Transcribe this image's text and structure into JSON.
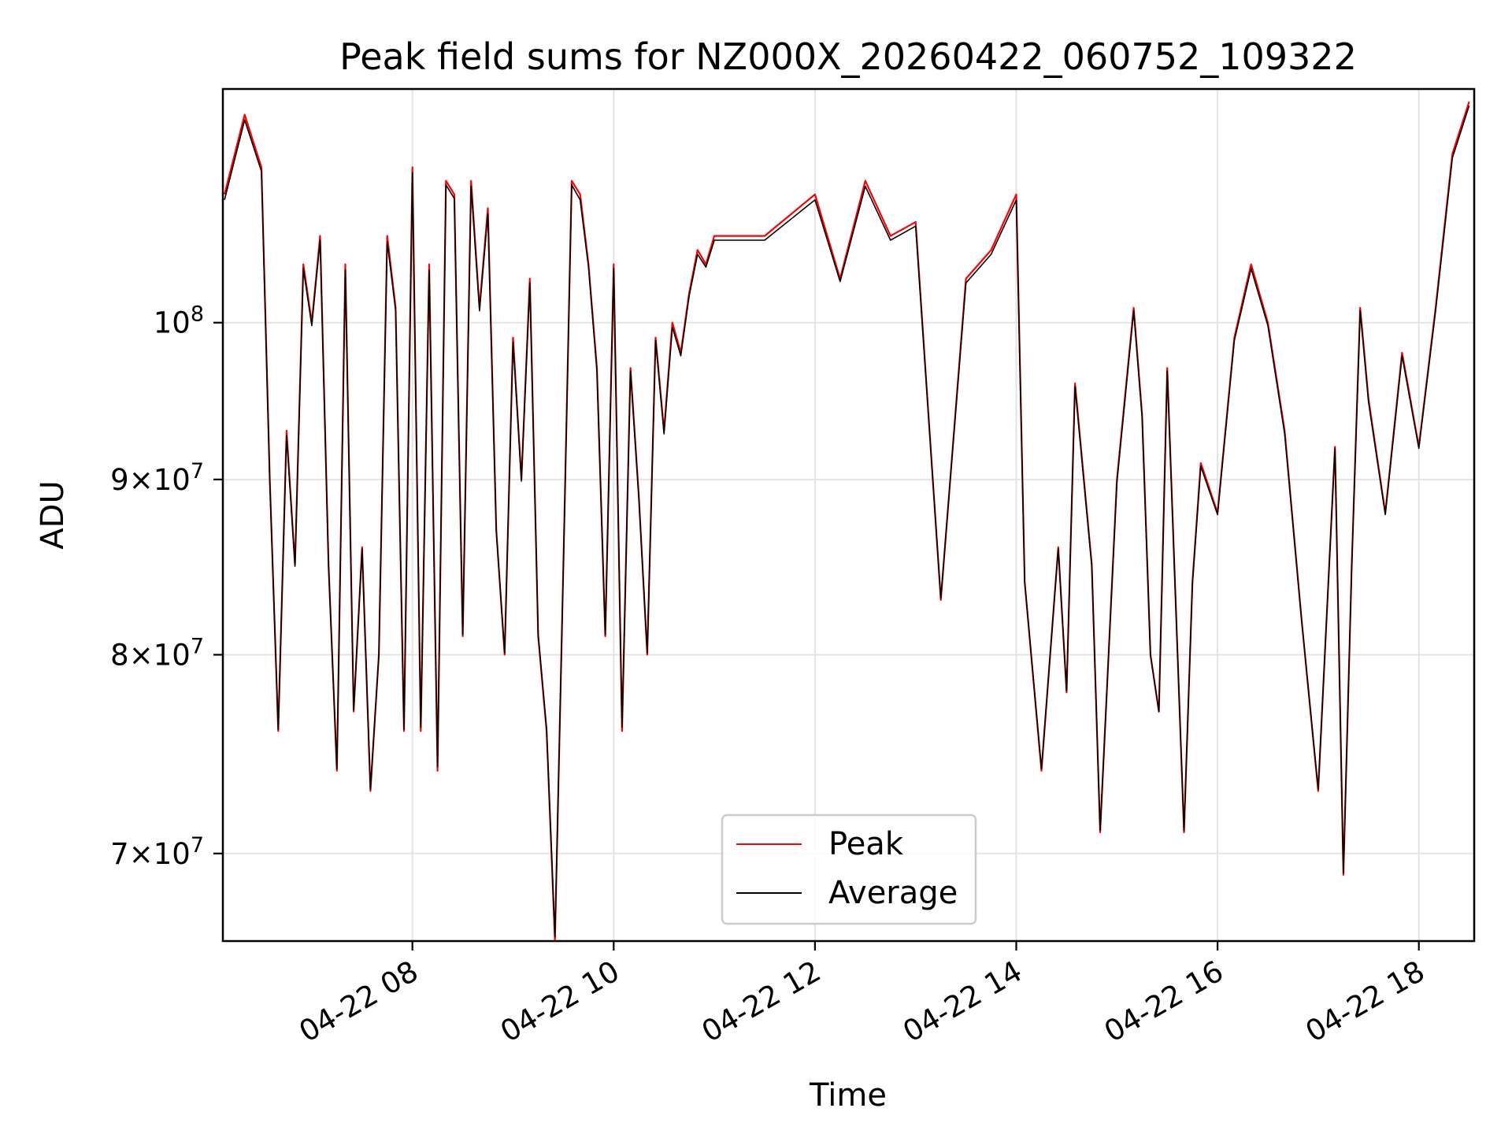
{
  "chart_data": {
    "type": "line",
    "title": "Peak field sums for NZ000X_20260422_060752_109322",
    "xlabel": "Time",
    "ylabel": "ADU",
    "y_scale": "log",
    "grid": true,
    "legend_placement": "lower-center",
    "xlim": [
      "2026-04-22 06:07",
      "2026-04-22 18:33"
    ],
    "ylim": [
      66000000,
      117000000
    ],
    "x_ticks": [
      {
        "value": "2026-04-22 08:00",
        "label": "04-22 08"
      },
      {
        "value": "2026-04-22 10:00",
        "label": "04-22 10"
      },
      {
        "value": "2026-04-22 12:00",
        "label": "04-22 12"
      },
      {
        "value": "2026-04-22 14:00",
        "label": "04-22 14"
      },
      {
        "value": "2026-04-22 16:00",
        "label": "04-22 16"
      },
      {
        "value": "2026-04-22 18:00",
        "label": "04-22 18"
      }
    ],
    "y_ticks": [
      {
        "value": 100000000,
        "base": "10",
        "exp": "8",
        "mant": ""
      },
      {
        "value": 90000000,
        "base": "10",
        "exp": "7",
        "mant": "9"
      },
      {
        "value": 80000000,
        "base": "10",
        "exp": "7",
        "mant": "8"
      },
      {
        "value": 70000000,
        "base": "10",
        "exp": "7",
        "mant": "7"
      }
    ],
    "x": [
      "06:08",
      "06:20",
      "06:30",
      "06:35",
      "06:40",
      "06:45",
      "06:50",
      "06:55",
      "07:00",
      "07:05",
      "07:10",
      "07:15",
      "07:20",
      "07:25",
      "07:30",
      "07:35",
      "07:40",
      "07:45",
      "07:50",
      "07:55",
      "08:00",
      "08:05",
      "08:10",
      "08:15",
      "08:20",
      "08:25",
      "08:30",
      "08:35",
      "08:40",
      "08:45",
      "08:50",
      "08:55",
      "09:00",
      "09:05",
      "09:10",
      "09:15",
      "09:20",
      "09:25",
      "09:30",
      "09:35",
      "09:40",
      "09:45",
      "09:50",
      "09:55",
      "10:00",
      "10:05",
      "10:10",
      "10:15",
      "10:20",
      "10:25",
      "10:30",
      "10:35",
      "10:40",
      "10:45",
      "10:50",
      "10:55",
      "11:00",
      "11:30",
      "12:00",
      "12:15",
      "12:30",
      "12:45",
      "13:00",
      "13:15",
      "13:30",
      "13:45",
      "14:00",
      "14:05",
      "14:15",
      "14:25",
      "14:30",
      "14:35",
      "14:45",
      "14:50",
      "15:00",
      "15:10",
      "15:15",
      "15:20",
      "15:25",
      "15:30",
      "15:40",
      "15:45",
      "15:50",
      "16:00",
      "16:10",
      "16:20",
      "16:30",
      "16:40",
      "16:50",
      "17:00",
      "17:10",
      "17:15",
      "17:20",
      "17:25",
      "17:30",
      "17:40",
      "17:50",
      "18:00",
      "18:10",
      "18:20",
      "18:30"
    ],
    "series": [
      {
        "name": "Peak",
        "color": "#ff0000",
        "values": [
          109000000,
          115000000,
          111000000,
          90000000,
          76000000,
          93000000,
          85000000,
          104000000,
          100000000,
          106000000,
          85000000,
          74000000,
          104000000,
          77000000,
          86000000,
          73000000,
          80000000,
          106000000,
          101000000,
          76000000,
          111000000,
          76000000,
          104000000,
          74000000,
          110000000,
          109000000,
          81000000,
          110000000,
          101000000,
          108000000,
          87000000,
          80000000,
          99000000,
          90000000,
          103000000,
          81000000,
          76000000,
          66000000,
          85000000,
          110000000,
          109000000,
          104000000,
          97000000,
          81000000,
          104000000,
          76000000,
          97000000,
          89000000,
          80000000,
          99000000,
          93000000,
          100000000,
          98000000,
          102000000,
          105000000,
          104000000,
          106000000,
          106000000,
          109000000,
          103000000,
          110000000,
          106000000,
          107000000,
          83000000,
          103000000,
          105000000,
          109000000,
          84000000,
          74000000,
          86000000,
          78000000,
          96000000,
          85000000,
          71000000,
          90000000,
          101000000,
          94000000,
          80000000,
          77000000,
          97000000,
          71000000,
          84000000,
          91000000,
          88000000,
          99000000,
          104000000,
          100000000,
          93000000,
          82000000,
          73000000,
          92000000,
          69000000,
          85000000,
          101000000,
          95000000,
          88000000,
          98000000,
          92000000,
          101000000,
          112000000,
          116000000
        ]
      },
      {
        "name": "Average",
        "color": "#000000",
        "values": [
          108600000,
          114600000,
          110700000,
          89800000,
          76100000,
          92700000,
          84900000,
          103700000,
          99800000,
          105700000,
          84900000,
          74100000,
          103600000,
          77100000,
          85900000,
          73100000,
          80000000,
          105600000,
          100800000,
          76100000,
          110600000,
          76200000,
          103600000,
          74200000,
          109700000,
          108700000,
          81100000,
          109600000,
          100800000,
          107600000,
          86900000,
          80100000,
          98700000,
          89900000,
          102700000,
          81100000,
          76100000,
          66200000,
          84900000,
          109700000,
          108600000,
          103800000,
          96800000,
          81100000,
          103700000,
          76200000,
          96800000,
          88900000,
          80100000,
          98800000,
          92800000,
          99700000,
          97800000,
          101800000,
          104700000,
          103800000,
          105700000,
          105700000,
          108600000,
          102800000,
          109600000,
          105700000,
          106700000,
          83100000,
          102700000,
          104700000,
          108600000,
          84000000,
          74100000,
          85900000,
          78100000,
          95800000,
          84900000,
          71100000,
          89800000,
          100800000,
          93800000,
          80000000,
          77000000,
          96800000,
          71100000,
          83900000,
          90800000,
          87900000,
          98800000,
          103700000,
          99800000,
          92800000,
          82000000,
          73100000,
          91900000,
          69100000,
          84900000,
          100800000,
          94800000,
          87900000,
          97800000,
          91900000,
          100800000,
          111700000,
          115700000
        ]
      }
    ]
  }
}
